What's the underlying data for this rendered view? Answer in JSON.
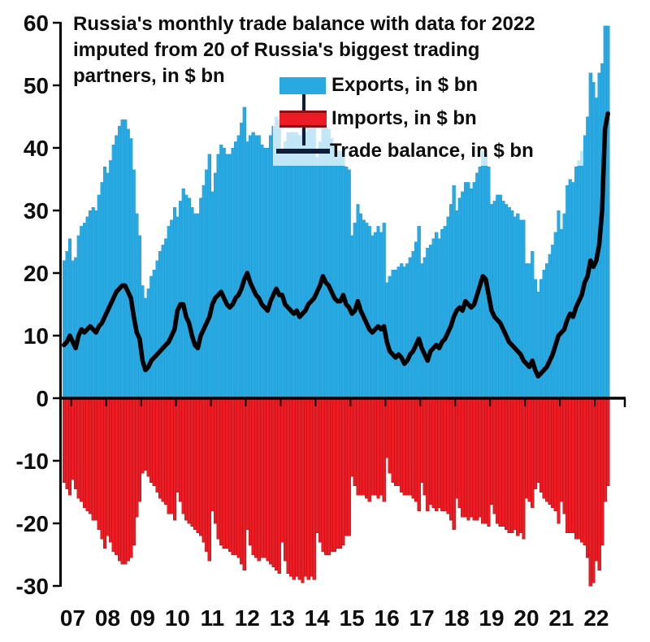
{
  "title": {
    "lines": [
      "Russia's monthly trade balance with data for 2022",
      "imputed from 20 of Russia's biggest trading",
      "partners, in $ bn"
    ]
  },
  "legend": {
    "items": [
      {
        "label": "Exports, in $ bn",
        "color": "#29a9e1",
        "type": "bar"
      },
      {
        "label": "Imports, in $ bn",
        "color": "#ed1c24",
        "type": "bar"
      },
      {
        "label": "Trade balance, in $ bn",
        "color": "#0d1d3a",
        "type": "line"
      }
    ]
  },
  "colors": {
    "exports_fill": "#29a9e1",
    "exports_edge": "#2196cd",
    "imports_fill": "#ed1c24",
    "imports_edge": "#9e1115",
    "balance_line": "#000000",
    "axis": "#000000",
    "text": "#0d0d0d",
    "background": "#ffffff"
  },
  "chart_data": {
    "type": "bar+line",
    "title": "Russia's monthly trade balance with data for 2022 imputed from 20 of Russia's biggest trading partners, in $ bn",
    "frequency": "monthly",
    "start": "2006-10",
    "end": "2022-05",
    "ylim": [
      -30,
      60
    ],
    "y_ticks": [
      60,
      50,
      40,
      30,
      20,
      10,
      0,
      -10,
      -20,
      -30
    ],
    "x_tick_labels": [
      "07",
      "08",
      "09",
      "10",
      "11",
      "12",
      "13",
      "14",
      "15",
      "16",
      "17",
      "18",
      "19",
      "20",
      "21",
      "22"
    ],
    "x_first_year_start_index": 3,
    "grid": false,
    "legend_position": "top-center-overlay",
    "series": [
      {
        "name": "Exports, in $ bn",
        "type": "bar",
        "color": "#29a9e1",
        "values": [
          22,
          23.5,
          25.5,
          22,
          22.5,
          26,
          27.5,
          28,
          29,
          30,
          30.5,
          30,
          32.5,
          34.5,
          37,
          36,
          38,
          40.5,
          42,
          43.5,
          44.5,
          44.5,
          43,
          41.5,
          36.5,
          29.5,
          26,
          18,
          16,
          17.5,
          19.5,
          20.5,
          22,
          23.5,
          24.5,
          25.5,
          27.5,
          28.5,
          30.5,
          29,
          31.5,
          33.5,
          32.5,
          32,
          30.5,
          29.5,
          29.5,
          32,
          34,
          36.5,
          39,
          33,
          36,
          39,
          40.5,
          40,
          39,
          39,
          40,
          41,
          42,
          44,
          46.5,
          41,
          42,
          42.5,
          42,
          42,
          40.5,
          40,
          40,
          42,
          43.5,
          45,
          44.5,
          39.5,
          41,
          42.5,
          42.5,
          42.5,
          42.5,
          42,
          43,
          42.5,
          44,
          44,
          45,
          38.5,
          41,
          44,
          43.5,
          43,
          41.5,
          40.5,
          39.5,
          39.5,
          40,
          37,
          36.5,
          26,
          28,
          31,
          29.5,
          28.5,
          28,
          27.5,
          26,
          26.5,
          27.5,
          26.5,
          28,
          18.5,
          19.5,
          20.5,
          20.5,
          21,
          21.5,
          21,
          21.5,
          22.5,
          23.5,
          25,
          27.5,
          21.5,
          22.5,
          24,
          24.5,
          25.5,
          26.5,
          25.5,
          27,
          27.5,
          29,
          31,
          34,
          30,
          32,
          33,
          34.5,
          34.5,
          33.5,
          34.5,
          36,
          37,
          39.5,
          39,
          37,
          31,
          31.5,
          32.5,
          32.5,
          31.5,
          31,
          30.5,
          30,
          29,
          29.5,
          28.5,
          28.5,
          21.5,
          21.5,
          23.5,
          19,
          17,
          19,
          20.5,
          21.5,
          23,
          24.5,
          26.5,
          30,
          27,
          29.5,
          34,
          35,
          34.5,
          37,
          38,
          39.5,
          42,
          45,
          52,
          50.5,
          48,
          52,
          53.5,
          59.5,
          59.5
        ]
      },
      {
        "name": "Imports, in $ bn",
        "type": "bar",
        "color": "#ed1c24",
        "values": [
          -13.5,
          -14.5,
          -15.5,
          -13,
          -14.5,
          -16,
          -16.5,
          -17.5,
          -18,
          -18.5,
          -19.5,
          -19.5,
          -21,
          -22.5,
          -24,
          -22,
          -23,
          -24.5,
          -25,
          -26,
          -26.5,
          -26.5,
          -26,
          -25.5,
          -23.5,
          -19,
          -16.5,
          -12,
          -11.5,
          -12.5,
          -13.5,
          -14,
          -15,
          -16,
          -16.5,
          -17,
          -18.5,
          -18.5,
          -19.5,
          -15,
          -16.5,
          -18.5,
          -19.5,
          -20,
          -20.5,
          -21,
          -21.5,
          -22,
          -23,
          -24.5,
          -26,
          -18,
          -20,
          -22.5,
          -23.5,
          -24,
          -24,
          -24.5,
          -25,
          -25,
          -25.5,
          -26.5,
          -27.5,
          -21,
          -23.5,
          -25,
          -25.5,
          -26,
          -25.5,
          -25.5,
          -26,
          -26.5,
          -27,
          -27.5,
          -28,
          -23,
          -26,
          -28,
          -28.5,
          -29,
          -28.5,
          -29,
          -29.5,
          -28.5,
          -29,
          -28.5,
          -29,
          -21.5,
          -23,
          -24.5,
          -25,
          -25,
          -24.5,
          -24.5,
          -24,
          -24,
          -23.5,
          -22,
          -22,
          -12.5,
          -14,
          -15.5,
          -15.5,
          -15.5,
          -16,
          -16.5,
          -15.5,
          -15.5,
          -16,
          -15.5,
          -16.5,
          -9.5,
          -12,
          -13.5,
          -14,
          -14,
          -15,
          -15.5,
          -15.5,
          -15.5,
          -16,
          -16.5,
          -18,
          -13.5,
          -15.5,
          -18,
          -17,
          -17.5,
          -18,
          -17.5,
          -18,
          -18,
          -18.5,
          -19.5,
          -21,
          -16,
          -17.5,
          -19,
          -19,
          -19.5,
          -19,
          -19.5,
          -19.5,
          -19,
          -20,
          -20,
          -20.5,
          -17,
          -18.5,
          -20,
          -20.5,
          -20.5,
          -21,
          -21.5,
          -21.5,
          -21,
          -22,
          -21.5,
          -22.5,
          -16,
          -16.5,
          -17.5,
          -14.5,
          -13.5,
          -15,
          -16,
          -16.5,
          -17,
          -17.5,
          -18,
          -20,
          -16.5,
          -18.5,
          -21.5,
          -21.5,
          -21.5,
          -22.5,
          -22.5,
          -23,
          -23.5,
          -25.5,
          -30,
          -29.5,
          -26,
          -27.5,
          -23.5,
          -16.5,
          -14
        ]
      },
      {
        "name": "Trade balance, in $ bn",
        "type": "line",
        "color": "#000000",
        "values": [
          8.5,
          9,
          10,
          9,
          8,
          10,
          11,
          10.5,
          11,
          11.5,
          11,
          10.5,
          11.5,
          12,
          13,
          14,
          15,
          16,
          17,
          17.5,
          18,
          18,
          17,
          16,
          13,
          10.5,
          9.5,
          6,
          4.5,
          5,
          6,
          6.5,
          7,
          7.5,
          8,
          8.5,
          9,
          10,
          11,
          14,
          15,
          15,
          13,
          12,
          10,
          8.5,
          8,
          10,
          11,
          12,
          13,
          15,
          16,
          16.5,
          17,
          16,
          15,
          14.5,
          15,
          16,
          16.5,
          17.5,
          19,
          20,
          18.5,
          17.5,
          16.5,
          16,
          15,
          14.5,
          14,
          15.5,
          16.5,
          17.5,
          16.5,
          16.5,
          15,
          14.5,
          14,
          13.5,
          14,
          13,
          13.5,
          14,
          15,
          15.5,
          16,
          17,
          18,
          19.5,
          18.5,
          18,
          17,
          16,
          15.5,
          15.5,
          16.5,
          15,
          14.5,
          13.5,
          14,
          15.5,
          14,
          13,
          12,
          11,
          10.5,
          11,
          11.5,
          11,
          11.5,
          9,
          7.5,
          7,
          6.5,
          7,
          6.5,
          5.5,
          6,
          7,
          7.5,
          8.5,
          9.5,
          8,
          7,
          6,
          7.5,
          8,
          8.5,
          8,
          9,
          9.5,
          10.5,
          11.5,
          13,
          14,
          14.5,
          14,
          15.5,
          15,
          14.5,
          15,
          16.5,
          18,
          19.5,
          19,
          16.5,
          14,
          13,
          12.5,
          12,
          11,
          10,
          9,
          8.5,
          8,
          7.5,
          7,
          6,
          5.5,
          5,
          6,
          4.5,
          3.5,
          4,
          4.5,
          5,
          6,
          7,
          8.5,
          10,
          10.5,
          11,
          12.5,
          13.5,
          13,
          14.5,
          15.5,
          16.5,
          18.5,
          19.5,
          22,
          21,
          22,
          24.5,
          30,
          43,
          45.5
        ]
      }
    ]
  }
}
